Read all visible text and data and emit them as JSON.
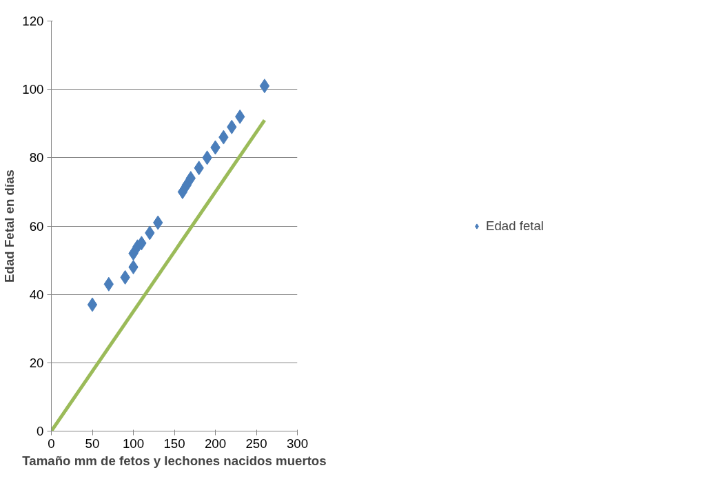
{
  "chart_data": {
    "type": "scatter",
    "xlabel": "Tamaño mm de fetos y lechones nacidos muertos",
    "ylabel": "Edad Fetal en días",
    "series": [
      {
        "name": "Edad fetal",
        "color": "#4a7ebb",
        "marker": "diamond",
        "x": [
          50,
          70,
          90,
          100,
          100,
          105,
          110,
          120,
          130,
          160,
          165,
          170,
          180,
          190,
          200,
          210,
          220,
          230,
          260
        ],
        "values": [
          37,
          43,
          45,
          48,
          52,
          54,
          55,
          58,
          61,
          70,
          72,
          74,
          77,
          80,
          83,
          86,
          89,
          92,
          101
        ]
      },
      {
        "type": "line",
        "color": "#9bbb59",
        "x": [
          0,
          260
        ],
        "values": [
          0,
          91
        ]
      }
    ],
    "xlim": [
      0,
      300
    ],
    "xticks": [
      0,
      50,
      100,
      150,
      200,
      250,
      300
    ],
    "ylim": [
      0,
      120
    ],
    "yticks": [
      0,
      20,
      40,
      60,
      80,
      100,
      120
    ],
    "grid": "y",
    "legend": "right"
  }
}
